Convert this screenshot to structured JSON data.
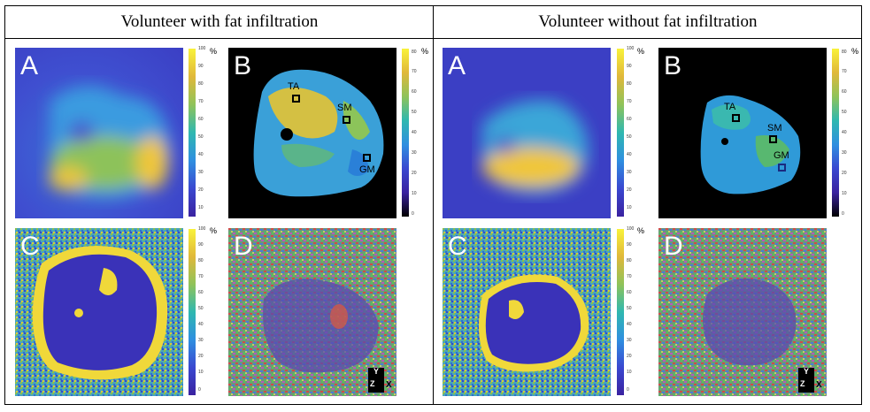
{
  "headers": {
    "left": "Volunteer with fat infiltration",
    "right": "Volunteer without fat infiltration"
  },
  "panels": {
    "a": "A",
    "b": "B",
    "c": "C",
    "d": "D"
  },
  "rois": {
    "ta": "TA",
    "sm": "SM",
    "gm": "GM"
  },
  "colorbars": {
    "unit": "%",
    "ticks_100": [
      "100",
      "90",
      "80",
      "70",
      "60",
      "50",
      "40",
      "30",
      "20",
      "10"
    ],
    "ticks_b_left": [
      "80",
      "70",
      "60",
      "50",
      "40",
      "30",
      "20",
      "10",
      "0"
    ],
    "ticks_b_right": [
      "80",
      "70",
      "60",
      "50",
      "40",
      "30",
      "20",
      "10",
      "0"
    ],
    "ticks_c": [
      "100",
      "90",
      "80",
      "70",
      "60",
      "50",
      "40",
      "30",
      "20",
      "10",
      "0"
    ]
  },
  "axes": {
    "y": "Y",
    "z": "Z",
    "x": "X"
  },
  "colors": {
    "map_background": "#3a3fc8",
    "tissue_mid": "#2fa6d6",
    "fat_high": "#f5d13a",
    "roi_box": "#000000"
  }
}
